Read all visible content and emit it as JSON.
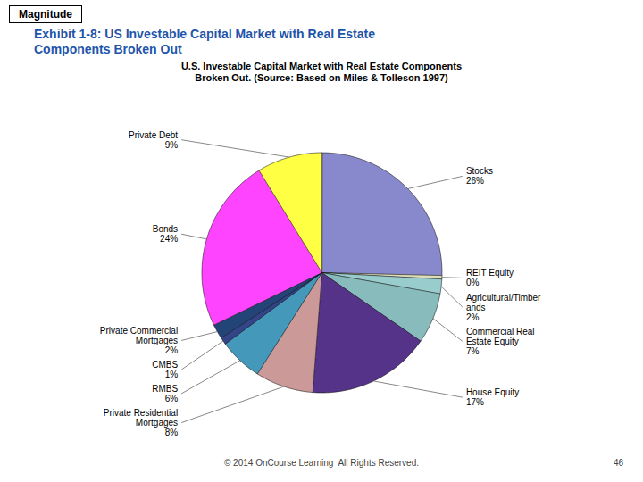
{
  "chart_data": {
    "type": "pie",
    "title": "Exhibit 1-8: US Investable Capital Market with Real Estate\nComponents Broken Out",
    "subtitle": "U.S. Investable Capital Market with Real Estate Components\nBroken Out. (Source: Based on Miles & Tolleson 1997)",
    "annotations": [
      "Magnitude",
      "© 2014 OnCourse Learning  All Rights Reserved.",
      "46"
    ],
    "categories": [
      "Stocks",
      "REIT Equity",
      "Agricultural/Timber\nands",
      "Commercial Real\nEstate Equity",
      "House Equity",
      "Private Residential\nMortgages",
      "RMBS",
      "CMBS",
      "Private Commercial\nMortgages",
      "Bonds",
      "Private Debt"
    ],
    "values": [
      26,
      0.5,
      2,
      7,
      17,
      8,
      6,
      1,
      2,
      24,
      9
    ],
    "value_labels": [
      "26%",
      "0%",
      "2%",
      "7%",
      "17%",
      "8%",
      "6%",
      "1%",
      "2%",
      "24%",
      "9%"
    ],
    "colors": [
      "#8888cc",
      "#ddddbb",
      "#99cccc",
      "#88bbbb",
      "#553388",
      "#cc9999",
      "#4499bb",
      "#334488",
      "#224477",
      "#ff44ff",
      "#ffff44"
    ],
    "data_labels": true
  }
}
